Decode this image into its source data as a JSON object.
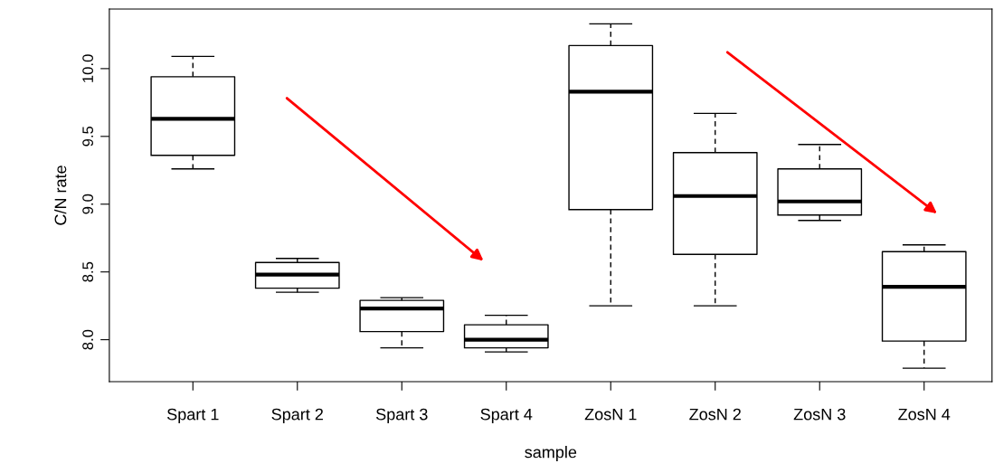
{
  "chart_data": {
    "type": "box",
    "xlabel": "sample",
    "ylabel": "C/N rate",
    "categories": [
      "Spart 1",
      "Spart 2",
      "Spart 3",
      "Spart 4",
      "ZosN 1",
      "ZosN 2",
      "ZosN 3",
      "ZosN 4"
    ],
    "boxes": [
      {
        "low": 9.26,
        "q1": 9.36,
        "median": 9.63,
        "q3": 9.94,
        "high": 10.09
      },
      {
        "low": 8.35,
        "q1": 8.38,
        "median": 8.48,
        "q3": 8.57,
        "high": 8.6
      },
      {
        "low": 7.94,
        "q1": 8.06,
        "median": 8.23,
        "q3": 8.29,
        "high": 8.31
      },
      {
        "low": 7.91,
        "q1": 7.94,
        "median": 8.0,
        "q3": 8.11,
        "high": 8.18
      },
      {
        "low": 8.25,
        "q1": 8.96,
        "median": 9.83,
        "q3": 10.17,
        "high": 10.33
      },
      {
        "low": 8.25,
        "q1": 8.63,
        "median": 9.06,
        "q3": 9.38,
        "high": 9.67
      },
      {
        "low": 8.88,
        "q1": 8.92,
        "median": 9.02,
        "q3": 9.26,
        "high": 9.44
      },
      {
        "low": 7.79,
        "q1": 7.99,
        "median": 8.39,
        "q3": 8.65,
        "high": 8.7
      }
    ],
    "ylim": [
      7.69,
      10.44
    ],
    "yticks": [
      {
        "value": 8,
        "label": "8.0"
      },
      {
        "value": 8.5,
        "label": "8.5"
      },
      {
        "value": 9,
        "label": "9.0"
      },
      {
        "value": 9.5,
        "label": "9.5"
      },
      {
        "value": 10,
        "label": "10.0"
      }
    ],
    "grid": false
  }
}
